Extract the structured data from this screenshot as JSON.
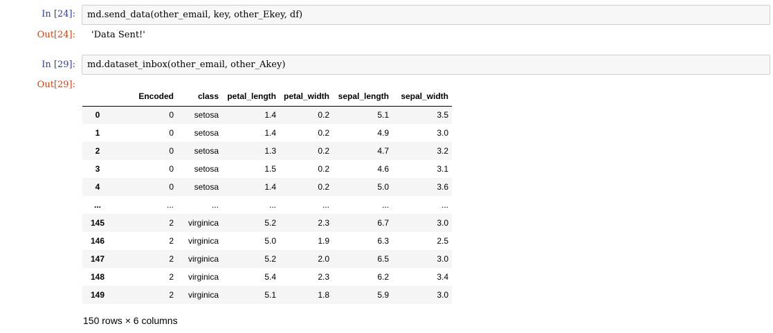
{
  "cells": [
    {
      "in_prompt": "In [24]:",
      "code": "md.send_data(other_email, key, other_Ekey, df)",
      "out_prompt": "Out[24]:",
      "output": "'Data Sent!'"
    },
    {
      "in_prompt": "In [29]:",
      "code": "md.dataset_inbox(other_email, other_Akey)",
      "out_prompt": "Out[29]:"
    }
  ],
  "table": {
    "columns": [
      "",
      "Encoded",
      "class",
      "petal_length",
      "petal_width",
      "sepal_length",
      "sepal_width"
    ],
    "rows": [
      [
        "0",
        "0",
        "setosa",
        "1.4",
        "0.2",
        "5.1",
        "3.5"
      ],
      [
        "1",
        "0",
        "setosa",
        "1.4",
        "0.2",
        "4.9",
        "3.0"
      ],
      [
        "2",
        "0",
        "setosa",
        "1.3",
        "0.2",
        "4.7",
        "3.2"
      ],
      [
        "3",
        "0",
        "setosa",
        "1.5",
        "0.2",
        "4.6",
        "3.1"
      ],
      [
        "4",
        "0",
        "setosa",
        "1.4",
        "0.2",
        "5.0",
        "3.6"
      ],
      [
        "...",
        "...",
        "...",
        "...",
        "...",
        "...",
        "..."
      ],
      [
        "145",
        "2",
        "virginica",
        "5.2",
        "2.3",
        "6.7",
        "3.0"
      ],
      [
        "146",
        "2",
        "virginica",
        "5.0",
        "1.9",
        "6.3",
        "2.5"
      ],
      [
        "147",
        "2",
        "virginica",
        "5.2",
        "2.0",
        "6.5",
        "3.0"
      ],
      [
        "148",
        "2",
        "virginica",
        "5.4",
        "2.3",
        "6.2",
        "3.4"
      ],
      [
        "149",
        "2",
        "virginica",
        "5.1",
        "1.8",
        "5.9",
        "3.0"
      ]
    ],
    "shape": "150 rows × 6 columns"
  }
}
